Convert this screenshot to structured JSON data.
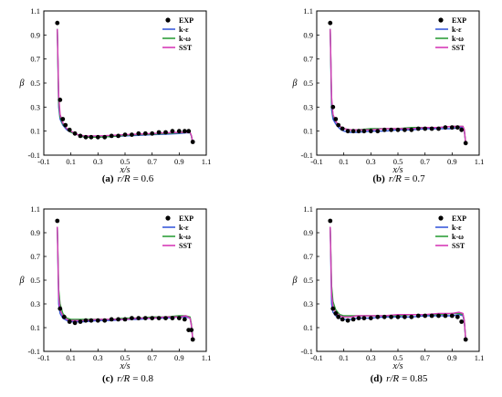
{
  "chart_data": [
    {
      "type": "line",
      "panel_label": "(a)",
      "caption_prefix": "r/R",
      "caption_value": "= 0.6",
      "xlabel": "x/s",
      "ylabel": "β",
      "xlim": [
        -0.1,
        1.1
      ],
      "ylim": [
        -0.1,
        1.1
      ],
      "xticks": [
        "-0.1",
        "0.1",
        "0.3",
        "0.5",
        "0.7",
        "0.9",
        "1.1"
      ],
      "yticks": [
        "-0.1",
        "0.1",
        "0.3",
        "0.5",
        "0.7",
        "0.9",
        "1.1"
      ],
      "legend_position": "top-right",
      "grid": false,
      "exp": {
        "name": "EXP",
        "x": [
          0.0,
          0.02,
          0.04,
          0.06,
          0.09,
          0.13,
          0.17,
          0.21,
          0.25,
          0.3,
          0.35,
          0.4,
          0.45,
          0.5,
          0.55,
          0.6,
          0.65,
          0.7,
          0.75,
          0.8,
          0.85,
          0.9,
          0.94,
          0.97,
          1.0
        ],
        "y": [
          1.0,
          0.36,
          0.2,
          0.15,
          0.11,
          0.08,
          0.06,
          0.05,
          0.05,
          0.05,
          0.05,
          0.06,
          0.06,
          0.07,
          0.07,
          0.08,
          0.08,
          0.08,
          0.09,
          0.09,
          0.1,
          0.1,
          0.1,
          0.1,
          0.01
        ]
      },
      "series": [
        {
          "name": "k-ε",
          "x": [
            0.0,
            0.01,
            0.02,
            0.04,
            0.07,
            0.1,
            0.15,
            0.2,
            0.3,
            0.4,
            0.5,
            0.6,
            0.7,
            0.8,
            0.9,
            0.95,
            0.98,
            0.99,
            1.0
          ],
          "y": [
            0.95,
            0.3,
            0.2,
            0.15,
            0.11,
            0.09,
            0.07,
            0.05,
            0.05,
            0.055,
            0.06,
            0.065,
            0.07,
            0.075,
            0.08,
            0.085,
            0.085,
            0.06,
            0.0
          ]
        },
        {
          "name": "k-ω",
          "x": [
            0.0,
            0.01,
            0.02,
            0.04,
            0.07,
            0.1,
            0.15,
            0.2,
            0.3,
            0.4,
            0.5,
            0.6,
            0.7,
            0.8,
            0.9,
            0.95,
            0.98,
            0.99,
            1.0
          ],
          "y": [
            0.95,
            0.34,
            0.22,
            0.16,
            0.12,
            0.09,
            0.07,
            0.05,
            0.05,
            0.055,
            0.065,
            0.07,
            0.075,
            0.08,
            0.085,
            0.09,
            0.09,
            0.06,
            0.0
          ]
        },
        {
          "name": "SST",
          "x": [
            0.0,
            0.01,
            0.02,
            0.04,
            0.07,
            0.1,
            0.15,
            0.2,
            0.3,
            0.4,
            0.5,
            0.6,
            0.7,
            0.8,
            0.9,
            0.95,
            0.98,
            0.99,
            1.0
          ],
          "y": [
            0.95,
            0.4,
            0.24,
            0.17,
            0.12,
            0.1,
            0.07,
            0.06,
            0.06,
            0.065,
            0.07,
            0.075,
            0.08,
            0.085,
            0.09,
            0.09,
            0.09,
            0.065,
            0.0
          ]
        }
      ]
    },
    {
      "type": "line",
      "panel_label": "(b)",
      "caption_prefix": "r/R",
      "caption_value": "= 0.7",
      "xlabel": "x/s",
      "ylabel": "β",
      "xlim": [
        -0.1,
        1.1
      ],
      "ylim": [
        -0.1,
        1.1
      ],
      "xticks": [
        "-0.1",
        "0.1",
        "0.3",
        "0.5",
        "0.7",
        "0.9",
        "1.1"
      ],
      "yticks": [
        "-0.1",
        "0.1",
        "0.3",
        "0.5",
        "0.7",
        "0.9",
        "1.1"
      ],
      "legend_position": "top-right",
      "grid": false,
      "exp": {
        "name": "EXP",
        "x": [
          0.0,
          0.02,
          0.04,
          0.06,
          0.09,
          0.13,
          0.17,
          0.21,
          0.25,
          0.3,
          0.35,
          0.4,
          0.45,
          0.5,
          0.55,
          0.6,
          0.65,
          0.7,
          0.75,
          0.8,
          0.85,
          0.9,
          0.94,
          0.97,
          1.0
        ],
        "y": [
          1.0,
          0.3,
          0.2,
          0.15,
          0.12,
          0.1,
          0.1,
          0.1,
          0.1,
          0.1,
          0.1,
          0.11,
          0.11,
          0.11,
          0.11,
          0.11,
          0.12,
          0.12,
          0.12,
          0.12,
          0.13,
          0.13,
          0.13,
          0.11,
          0.0
        ]
      },
      "series": [
        {
          "name": "k-ε",
          "x": [
            0.0,
            0.01,
            0.02,
            0.04,
            0.07,
            0.1,
            0.15,
            0.2,
            0.3,
            0.4,
            0.5,
            0.6,
            0.7,
            0.8,
            0.9,
            0.95,
            0.98,
            0.99,
            1.0
          ],
          "y": [
            0.95,
            0.28,
            0.2,
            0.16,
            0.12,
            0.1,
            0.09,
            0.09,
            0.1,
            0.1,
            0.11,
            0.11,
            0.12,
            0.12,
            0.12,
            0.13,
            0.13,
            0.1,
            0.0
          ]
        },
        {
          "name": "k-ω",
          "x": [
            0.0,
            0.01,
            0.02,
            0.04,
            0.07,
            0.1,
            0.15,
            0.2,
            0.3,
            0.4,
            0.5,
            0.6,
            0.7,
            0.8,
            0.9,
            0.95,
            0.98,
            0.99,
            1.0
          ],
          "y": [
            0.95,
            0.35,
            0.23,
            0.18,
            0.14,
            0.12,
            0.11,
            0.11,
            0.12,
            0.12,
            0.12,
            0.13,
            0.13,
            0.13,
            0.14,
            0.14,
            0.14,
            0.11,
            0.0
          ]
        },
        {
          "name": "SST",
          "x": [
            0.0,
            0.01,
            0.02,
            0.04,
            0.07,
            0.1,
            0.15,
            0.2,
            0.3,
            0.4,
            0.5,
            0.6,
            0.7,
            0.8,
            0.9,
            0.95,
            0.98,
            0.99,
            1.0
          ],
          "y": [
            0.95,
            0.38,
            0.24,
            0.18,
            0.14,
            0.12,
            0.11,
            0.11,
            0.11,
            0.12,
            0.12,
            0.12,
            0.13,
            0.13,
            0.14,
            0.14,
            0.14,
            0.11,
            0.0
          ]
        }
      ]
    },
    {
      "type": "line",
      "panel_label": "(c)",
      "caption_prefix": "r/R",
      "caption_value": "= 0.8",
      "xlabel": "x/s",
      "ylabel": "β",
      "xlim": [
        -0.1,
        1.1
      ],
      "ylim": [
        -0.1,
        1.1
      ],
      "xticks": [
        "-0.1",
        "0.1",
        "0.3",
        "0.5",
        "0.7",
        "0.9",
        "1.1"
      ],
      "yticks": [
        "-0.1",
        "0.1",
        "0.3",
        "0.5",
        "0.7",
        "0.9",
        "1.1"
      ],
      "legend_position": "top-right",
      "grid": false,
      "exp": {
        "name": "EXP",
        "x": [
          0.0,
          0.02,
          0.05,
          0.09,
          0.13,
          0.17,
          0.21,
          0.25,
          0.3,
          0.35,
          0.4,
          0.45,
          0.5,
          0.55,
          0.6,
          0.65,
          0.7,
          0.75,
          0.8,
          0.85,
          0.9,
          0.94,
          0.97,
          0.99,
          1.0
        ],
        "y": [
          1.0,
          0.26,
          0.19,
          0.15,
          0.14,
          0.15,
          0.16,
          0.16,
          0.16,
          0.16,
          0.17,
          0.17,
          0.17,
          0.18,
          0.18,
          0.18,
          0.18,
          0.18,
          0.18,
          0.18,
          0.18,
          0.17,
          0.08,
          0.08,
          0.0
        ]
      },
      "series": [
        {
          "name": "k-ε",
          "x": [
            0.0,
            0.01,
            0.02,
            0.04,
            0.07,
            0.1,
            0.15,
            0.2,
            0.3,
            0.4,
            0.5,
            0.6,
            0.7,
            0.8,
            0.9,
            0.95,
            0.98,
            0.99,
            1.0
          ],
          "y": [
            0.95,
            0.3,
            0.22,
            0.18,
            0.16,
            0.15,
            0.15,
            0.15,
            0.16,
            0.16,
            0.17,
            0.17,
            0.18,
            0.18,
            0.19,
            0.19,
            0.18,
            0.12,
            0.0
          ]
        },
        {
          "name": "k-ω",
          "x": [
            0.0,
            0.01,
            0.02,
            0.04,
            0.07,
            0.1,
            0.15,
            0.2,
            0.3,
            0.4,
            0.5,
            0.6,
            0.7,
            0.8,
            0.9,
            0.95,
            0.98,
            0.99,
            1.0
          ],
          "y": [
            0.95,
            0.42,
            0.3,
            0.22,
            0.18,
            0.17,
            0.17,
            0.17,
            0.17,
            0.17,
            0.18,
            0.18,
            0.19,
            0.19,
            0.2,
            0.2,
            0.19,
            0.13,
            0.0
          ]
        },
        {
          "name": "SST",
          "x": [
            0.0,
            0.01,
            0.02,
            0.04,
            0.07,
            0.1,
            0.15,
            0.2,
            0.3,
            0.4,
            0.5,
            0.6,
            0.7,
            0.8,
            0.9,
            0.95,
            0.98,
            0.99,
            1.0
          ],
          "y": [
            0.95,
            0.36,
            0.25,
            0.2,
            0.17,
            0.16,
            0.16,
            0.16,
            0.17,
            0.17,
            0.17,
            0.18,
            0.18,
            0.19,
            0.19,
            0.2,
            0.18,
            0.12,
            0.0
          ]
        }
      ]
    },
    {
      "type": "line",
      "panel_label": "(d)",
      "caption_prefix": "r/R",
      "caption_value": "= 0.85",
      "xlabel": "x/s",
      "ylabel": "β",
      "xlim": [
        -0.1,
        1.1
      ],
      "ylim": [
        -0.1,
        1.1
      ],
      "xticks": [
        "-0.1",
        "0.1",
        "0.3",
        "0.5",
        "0.7",
        "0.9",
        "1.1"
      ],
      "yticks": [
        "-0.1",
        "0.1",
        "0.3",
        "0.5",
        "0.7",
        "0.9",
        "1.1"
      ],
      "legend_position": "top-right",
      "grid": false,
      "exp": {
        "name": "EXP",
        "x": [
          0.0,
          0.02,
          0.04,
          0.06,
          0.09,
          0.13,
          0.17,
          0.21,
          0.25,
          0.3,
          0.35,
          0.4,
          0.45,
          0.5,
          0.55,
          0.6,
          0.65,
          0.7,
          0.75,
          0.8,
          0.85,
          0.9,
          0.94,
          0.97,
          1.0
        ],
        "y": [
          1.0,
          0.26,
          0.22,
          0.19,
          0.17,
          0.16,
          0.17,
          0.18,
          0.18,
          0.18,
          0.19,
          0.19,
          0.19,
          0.19,
          0.19,
          0.19,
          0.2,
          0.2,
          0.2,
          0.2,
          0.2,
          0.2,
          0.19,
          0.15,
          0.0
        ]
      },
      "series": [
        {
          "name": "k-ε",
          "x": [
            0.0,
            0.01,
            0.02,
            0.04,
            0.07,
            0.1,
            0.15,
            0.2,
            0.3,
            0.4,
            0.5,
            0.6,
            0.7,
            0.8,
            0.9,
            0.95,
            0.98,
            0.99,
            1.0
          ],
          "y": [
            0.95,
            0.3,
            0.23,
            0.2,
            0.18,
            0.17,
            0.17,
            0.18,
            0.18,
            0.19,
            0.19,
            0.19,
            0.2,
            0.2,
            0.2,
            0.21,
            0.2,
            0.15,
            0.0
          ]
        },
        {
          "name": "k-ω",
          "x": [
            0.0,
            0.01,
            0.02,
            0.04,
            0.07,
            0.1,
            0.15,
            0.2,
            0.3,
            0.4,
            0.5,
            0.6,
            0.7,
            0.8,
            0.9,
            0.95,
            0.98,
            0.99,
            1.0
          ],
          "y": [
            0.95,
            0.45,
            0.32,
            0.25,
            0.21,
            0.2,
            0.2,
            0.2,
            0.2,
            0.2,
            0.2,
            0.21,
            0.21,
            0.21,
            0.22,
            0.22,
            0.21,
            0.16,
            0.0
          ]
        },
        {
          "name": "SST",
          "x": [
            0.0,
            0.01,
            0.02,
            0.04,
            0.07,
            0.1,
            0.15,
            0.2,
            0.3,
            0.4,
            0.5,
            0.6,
            0.7,
            0.8,
            0.9,
            0.95,
            0.98,
            0.99,
            1.0
          ],
          "y": [
            0.95,
            0.38,
            0.28,
            0.23,
            0.2,
            0.19,
            0.19,
            0.2,
            0.2,
            0.2,
            0.21,
            0.21,
            0.21,
            0.22,
            0.22,
            0.23,
            0.22,
            0.16,
            0.0
          ]
        }
      ]
    }
  ],
  "colors": {
    "k-ε": "#3b5bdb",
    "k-ω": "#2e9e3a",
    "SST": "#d63ab8",
    "EXP": "#000000"
  }
}
